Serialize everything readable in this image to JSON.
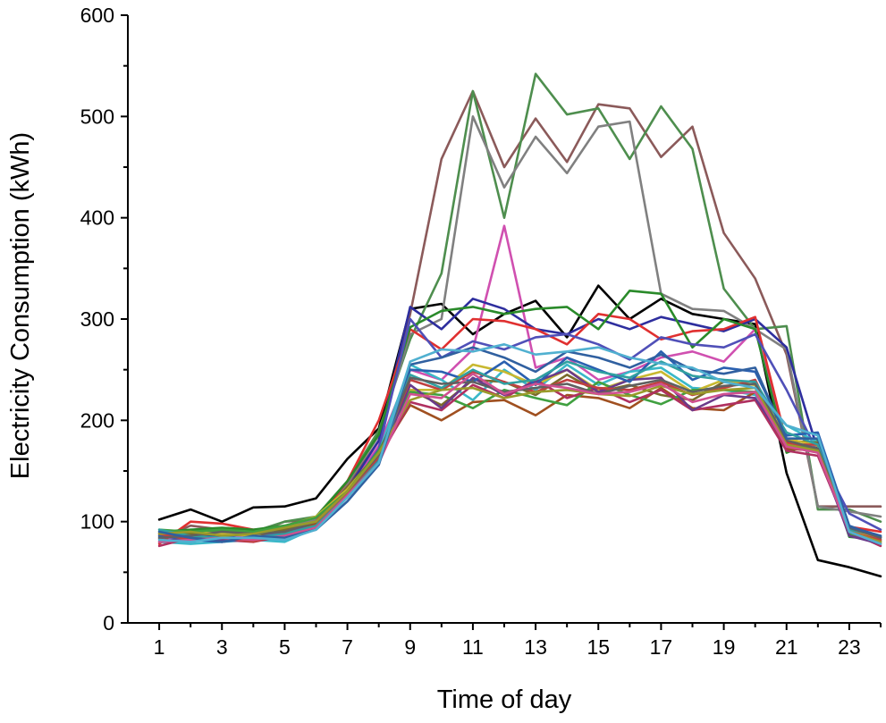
{
  "chart_data": {
    "type": "line",
    "title": "",
    "xlabel": "Time of day",
    "ylabel": "Electricity Consumption (kWh)",
    "xlim": [
      0,
      24
    ],
    "ylim": [
      0,
      600
    ],
    "x": [
      1,
      2,
      3,
      4,
      5,
      6,
      7,
      8,
      9,
      10,
      11,
      12,
      13,
      14,
      15,
      16,
      17,
      18,
      19,
      20,
      21,
      22,
      23,
      24
    ],
    "xticks": [
      1,
      3,
      5,
      7,
      9,
      11,
      13,
      15,
      17,
      19,
      21,
      23
    ],
    "xtick_labels": [
      "1",
      "3",
      "5",
      "7",
      "9",
      "11",
      "13",
      "15",
      "17",
      "19",
      "21",
      "23"
    ],
    "yticks": [
      0,
      100,
      200,
      300,
      400,
      500,
      600
    ],
    "ytick_labels": [
      "0",
      "100",
      "200",
      "300",
      "400",
      "500",
      "600"
    ],
    "grid": false,
    "legend": "none",
    "series": [
      {
        "color": "#000000",
        "values": [
          102,
          112,
          100,
          114,
          115,
          123,
          162,
          192,
          310,
          315,
          285,
          305,
          318,
          282,
          333,
          300,
          320,
          305,
          300,
          295,
          148,
          62,
          55,
          46
        ]
      },
      {
        "color": "#8b5a5a",
        "values": [
          83,
          96,
          92,
          88,
          100,
          102,
          135,
          180,
          305,
          458,
          525,
          450,
          498,
          455,
          512,
          508,
          460,
          490,
          385,
          340,
          265,
          115,
          115,
          115
        ]
      },
      {
        "color": "#4e8e4e",
        "values": [
          88,
          92,
          90,
          90,
          100,
          105,
          140,
          190,
          280,
          345,
          525,
          400,
          542,
          502,
          508,
          458,
          510,
          468,
          330,
          290,
          293,
          112,
          112,
          100
        ]
      },
      {
        "color": "#808080",
        "values": [
          90,
          86,
          86,
          88,
          95,
          102,
          138,
          185,
          285,
          300,
          500,
          430,
          480,
          444,
          490,
          495,
          325,
          310,
          308,
          290,
          270,
          115,
          110,
          105
        ]
      },
      {
        "color": "#d050b0",
        "values": [
          82,
          84,
          86,
          86,
          90,
          96,
          130,
          175,
          250,
          240,
          270,
          392,
          252,
          262,
          240,
          248,
          262,
          268,
          258,
          290,
          176,
          175,
          88,
          82
        ]
      },
      {
        "color": "#2e2e9e",
        "values": [
          86,
          88,
          84,
          90,
          92,
          100,
          132,
          180,
          312,
          290,
          320,
          310,
          290,
          285,
          300,
          290,
          302,
          295,
          288,
          300,
          272,
          170,
          95,
          85
        ]
      },
      {
        "color": "#e03030",
        "values": [
          78,
          100,
          98,
          92,
          92,
          100,
          140,
          200,
          290,
          270,
          300,
          298,
          290,
          275,
          305,
          300,
          280,
          288,
          290,
          302,
          178,
          172,
          95,
          90
        ]
      },
      {
        "color": "#2a8a2a",
        "values": [
          90,
          92,
          94,
          92,
          96,
          104,
          140,
          186,
          292,
          308,
          312,
          305,
          310,
          312,
          290,
          328,
          325,
          272,
          300,
          290,
          168,
          180,
          85,
          82
        ]
      },
      {
        "color": "#5050b8",
        "values": [
          84,
          86,
          80,
          86,
          90,
          98,
          128,
          172,
          300,
          262,
          278,
          270,
          282,
          285,
          275,
          260,
          282,
          275,
          272,
          285,
          230,
          168,
          108,
          92
        ]
      },
      {
        "color": "#3ab8c8",
        "values": [
          80,
          78,
          80,
          82,
          80,
          94,
          128,
          168,
          255,
          240,
          220,
          250,
          230,
          255,
          235,
          248,
          252,
          232,
          230,
          225,
          195,
          178,
          92,
          80
        ]
      },
      {
        "color": "#7a6a2a",
        "values": [
          85,
          88,
          88,
          86,
          92,
          98,
          134,
          168,
          230,
          215,
          240,
          238,
          225,
          245,
          228,
          235,
          225,
          220,
          238,
          235,
          180,
          178,
          92,
          78
        ]
      },
      {
        "color": "#a05020",
        "values": [
          88,
          85,
          90,
          90,
          95,
          98,
          132,
          165,
          215,
          200,
          218,
          220,
          205,
          225,
          222,
          212,
          232,
          212,
          210,
          228,
          172,
          170,
          95,
          80
        ]
      },
      {
        "color": "#c8b830",
        "values": [
          90,
          90,
          88,
          86,
          95,
          105,
          132,
          168,
          230,
          230,
          255,
          248,
          235,
          250,
          230,
          240,
          248,
          228,
          240,
          235,
          182,
          175,
          92,
          82
        ]
      },
      {
        "color": "#40a040",
        "values": [
          92,
          90,
          92,
          90,
          96,
          104,
          130,
          170,
          228,
          225,
          212,
          230,
          222,
          215,
          238,
          225,
          216,
          230,
          230,
          228,
          175,
          172,
          88,
          80
        ]
      },
      {
        "color": "#b03060",
        "values": [
          76,
          84,
          82,
          80,
          86,
          94,
          130,
          162,
          218,
          210,
          235,
          222,
          240,
          222,
          232,
          218,
          230,
          210,
          215,
          220,
          170,
          165,
          90,
          76
        ]
      },
      {
        "color": "#6a3a8a",
        "values": [
          80,
          84,
          82,
          84,
          88,
          96,
          128,
          160,
          235,
          212,
          242,
          225,
          238,
          250,
          228,
          240,
          242,
          210,
          225,
          222,
          176,
          170,
          86,
          78
        ]
      },
      {
        "color": "#2a60b0",
        "values": [
          86,
          82,
          80,
          84,
          86,
          96,
          124,
          160,
          250,
          248,
          238,
          258,
          235,
          262,
          250,
          238,
          268,
          240,
          252,
          248,
          185,
          188,
          96,
          84
        ]
      },
      {
        "color": "#c04040",
        "values": [
          88,
          82,
          84,
          80,
          88,
          96,
          128,
          164,
          240,
          230,
          248,
          238,
          228,
          240,
          232,
          230,
          238,
          225,
          232,
          240,
          176,
          176,
          90,
          82
        ]
      },
      {
        "color": "#30a0a0",
        "values": [
          92,
          86,
          84,
          84,
          88,
          96,
          126,
          160,
          245,
          232,
          250,
          236,
          240,
          258,
          248,
          242,
          258,
          244,
          240,
          238,
          188,
          176,
          92,
          86
        ]
      },
      {
        "color": "#606060",
        "values": [
          84,
          86,
          90,
          88,
          90,
          100,
          130,
          166,
          242,
          236,
          238,
          228,
          232,
          236,
          226,
          234,
          240,
          228,
          234,
          236,
          180,
          172,
          94,
          84
        ]
      },
      {
        "color": "#9a9a2a",
        "values": [
          88,
          90,
          86,
          88,
          94,
          100,
          130,
          168,
          220,
          230,
          232,
          222,
          228,
          230,
          226,
          224,
          234,
          226,
          230,
          232,
          176,
          170,
          90,
          80
        ]
      },
      {
        "color": "#d05090",
        "values": [
          80,
          82,
          84,
          82,
          86,
          94,
          126,
          158,
          226,
          222,
          246,
          226,
          236,
          232,
          226,
          228,
          236,
          218,
          226,
          228,
          174,
          168,
          90,
          78
        ]
      },
      {
        "color": "#3060a0",
        "values": [
          90,
          84,
          80,
          86,
          84,
          92,
          120,
          156,
          255,
          262,
          272,
          262,
          248,
          268,
          262,
          252,
          265,
          250,
          246,
          252,
          182,
          182,
          95,
          86
        ]
      },
      {
        "color": "#50b0d0",
        "values": [
          82,
          80,
          84,
          84,
          82,
          92,
          124,
          158,
          258,
          270,
          268,
          275,
          265,
          268,
          272,
          262,
          256,
          252,
          238,
          232,
          195,
          185,
          90,
          78
        ]
      }
    ]
  }
}
